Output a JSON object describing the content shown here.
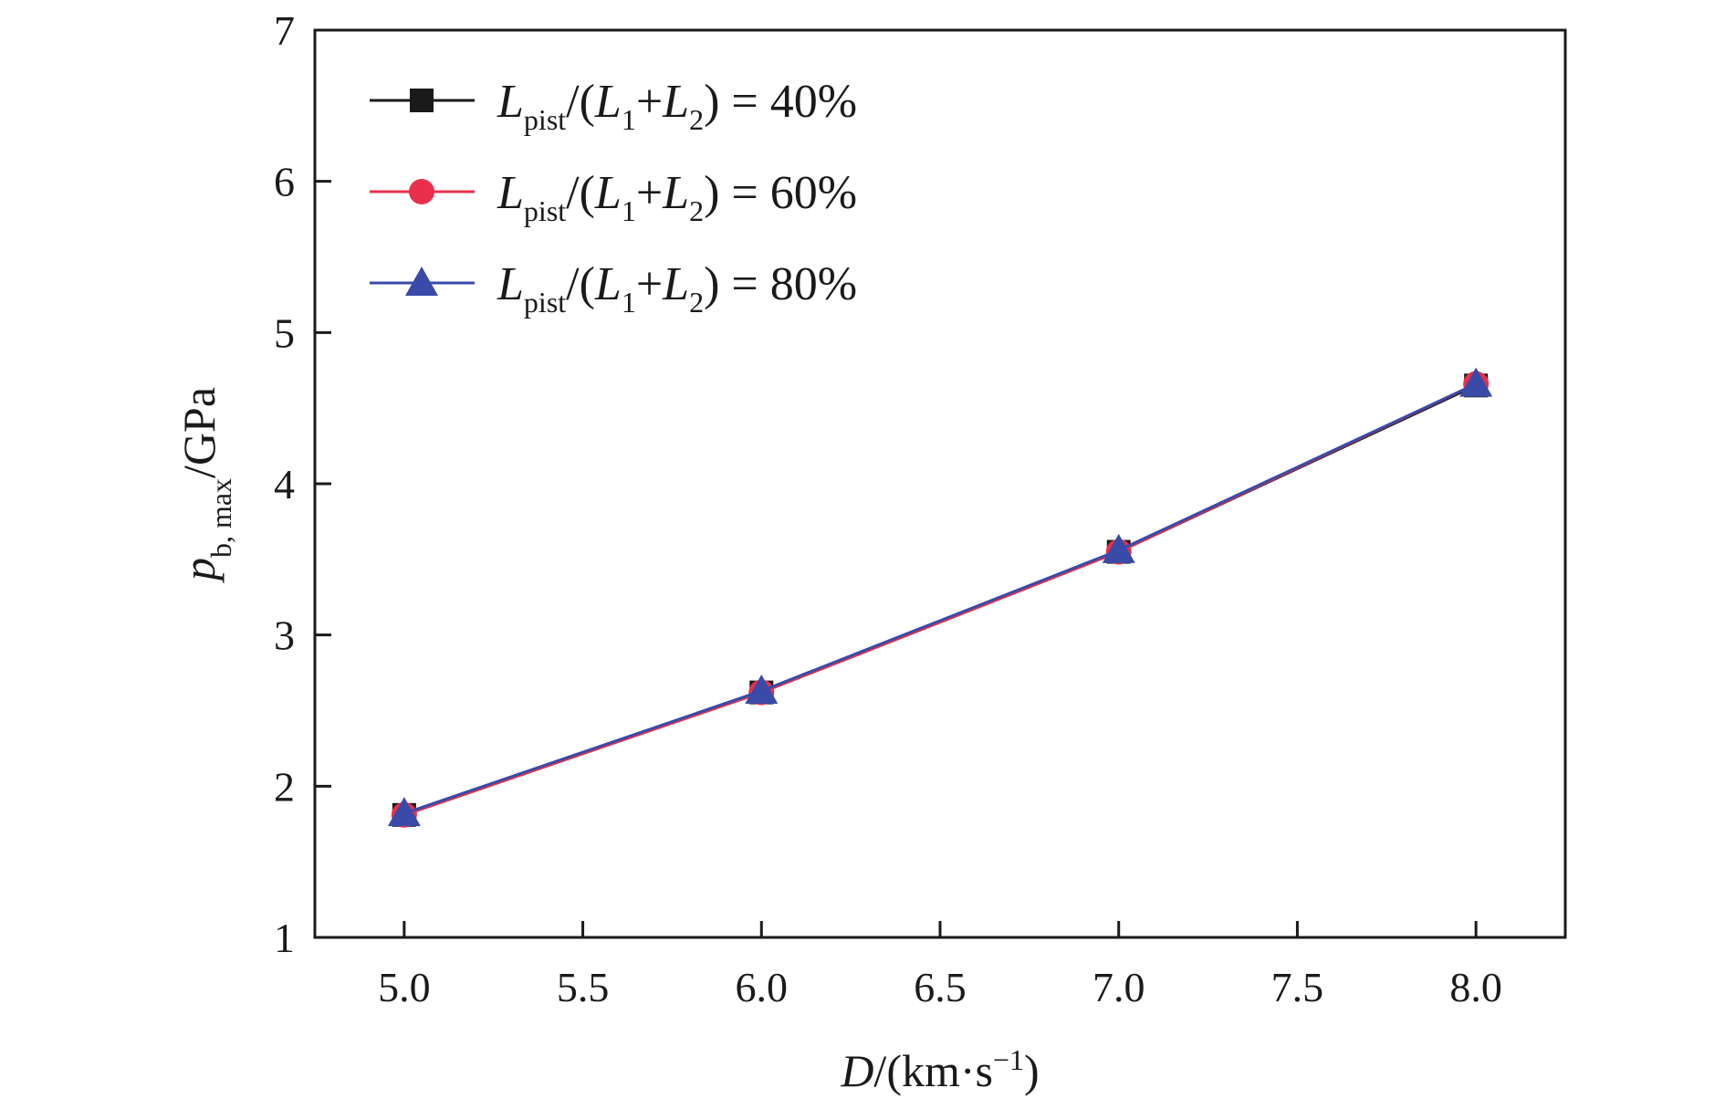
{
  "chart_data": {
    "type": "line",
    "title": "",
    "xlabel": {
      "main": "D",
      "unit_prefix": "/(km·s",
      "unit_sup": "−1",
      "unit_suffix": ")"
    },
    "ylabel": {
      "main": "p",
      "sub": "b, max",
      "unit": "/GPa"
    },
    "xlim": [
      4.75,
      8.25
    ],
    "ylim": [
      1,
      7
    ],
    "xticks": [
      5.0,
      5.5,
      6.0,
      6.5,
      7.0,
      7.5,
      8.0
    ],
    "xtick_labels": [
      "5.0",
      "5.5",
      "6.0",
      "6.5",
      "7.0",
      "7.5",
      "8.0"
    ],
    "yticks": [
      1,
      2,
      3,
      4,
      5,
      6,
      7
    ],
    "ytick_labels": [
      "1",
      "2",
      "3",
      "4",
      "5",
      "6",
      "7"
    ],
    "grid": false,
    "legend_position": "top-left",
    "x": [
      5.0,
      6.0,
      7.0,
      8.0
    ],
    "series": [
      {
        "name": "L_pist/(L1+L2) = 40%",
        "label": {
          "lead": "L",
          "lead_sub": "pist",
          "mid1": "/(",
          "l1": "L",
          "l1_sub": "1",
          "plus": "+",
          "l2": "L",
          "l2_sub": "2",
          "tail": ") = 40%"
        },
        "marker": "square",
        "color": "#1a1a1a",
        "values": [
          1.81,
          2.62,
          3.55,
          4.65
        ]
      },
      {
        "name": "L_pist/(L1+L2) = 60%",
        "label": {
          "lead": "L",
          "lead_sub": "pist",
          "mid1": "/(",
          "l1": "L",
          "l1_sub": "1",
          "plus": "+",
          "l2": "L",
          "l2_sub": "2",
          "tail": ") = 60%"
        },
        "marker": "circle",
        "color": "#e8304a",
        "values": [
          1.81,
          2.62,
          3.55,
          4.66
        ]
      },
      {
        "name": "L_pist/(L1+L2) = 80%",
        "label": {
          "lead": "L",
          "lead_sub": "pist",
          "mid1": "/(",
          "l1": "L",
          "l1_sub": "1",
          "plus": "+",
          "l2": "L",
          "l2_sub": "2",
          "tail": ") = 80%"
        },
        "marker": "triangle",
        "color": "#3a4aa8",
        "values": [
          1.82,
          2.63,
          3.56,
          4.66
        ]
      }
    ]
  }
}
